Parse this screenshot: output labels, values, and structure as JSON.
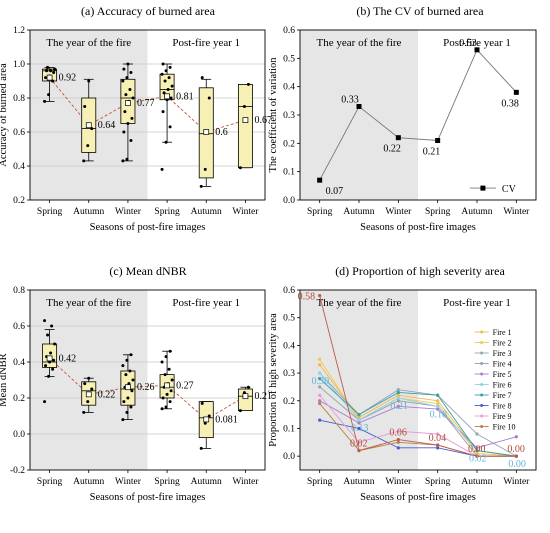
{
  "seasons": [
    "Spring",
    "Autumn",
    "Winter",
    "Spring",
    "Autumn",
    "Winter"
  ],
  "periods": [
    "The year of the fire",
    "Post-fire year 1"
  ],
  "xlabel": "Seasons of post-fire images",
  "chart_data": [
    {
      "panel": "a",
      "type": "box",
      "title": "(a) Accuracy of burned area",
      "ylabel": "Accuracy of burned area",
      "ylim": [
        0.2,
        1.2
      ],
      "yticks": [
        "0.2",
        "0.4",
        "0.6",
        "0.8",
        "1.0",
        "1.2"
      ],
      "mean_labels": [
        "0.92",
        "0.64",
        "0.77",
        "0.81",
        "0.6",
        "0.67"
      ],
      "boxes": [
        {
          "min": 0.78,
          "q1": 0.9,
          "median": 0.96,
          "q3": 0.97,
          "max": 0.98,
          "mean": 0.92,
          "points": [
            0.78,
            0.82,
            0.9,
            0.92,
            0.93,
            0.95,
            0.96,
            0.96,
            0.97,
            0.98
          ]
        },
        {
          "min": 0.43,
          "q1": 0.48,
          "median": 0.62,
          "q3": 0.8,
          "max": 0.91,
          "mean": 0.64,
          "points": [
            0.43,
            0.52,
            0.62,
            0.75,
            0.9
          ]
        },
        {
          "min": 0.43,
          "q1": 0.65,
          "median": 0.8,
          "q3": 0.91,
          "max": 1.0,
          "mean": 0.77,
          "points": [
            0.43,
            0.44,
            0.55,
            0.6,
            0.65,
            0.68,
            0.72,
            0.78,
            0.8,
            0.82,
            0.85,
            0.9,
            0.92,
            0.95,
            0.97,
            1.0
          ]
        },
        {
          "min": 0.54,
          "q1": 0.79,
          "median": 0.85,
          "q3": 0.94,
          "max": 1.0,
          "mean": 0.81,
          "points": [
            0.38,
            0.54,
            0.63,
            0.72,
            0.79,
            0.8,
            0.83,
            0.85,
            0.87,
            0.9,
            0.92,
            0.94,
            0.96,
            0.98,
            1.0
          ]
        },
        {
          "min": 0.28,
          "q1": 0.33,
          "median": 0.59,
          "q3": 0.86,
          "max": 0.91,
          "mean": 0.6,
          "points": [
            0.28,
            0.38,
            0.8,
            0.92
          ]
        },
        {
          "min": 0.39,
          "q1": 0.39,
          "median": 0.75,
          "q3": 0.88,
          "max": 0.88,
          "mean": 0.67,
          "points": [
            0.39,
            0.75,
            0.88
          ]
        }
      ]
    },
    {
      "panel": "b",
      "type": "line",
      "title": "(b) The CV of burned area",
      "ylabel": "The coefficient of variation",
      "ylim": [
        0.0,
        0.6
      ],
      "yticks": [
        "0.0",
        "0.1",
        "0.2",
        "0.3",
        "0.4",
        "0.5",
        "0.6"
      ],
      "legend": "CV",
      "values": [
        0.07,
        0.33,
        0.22,
        0.21,
        0.53,
        0.38
      ],
      "value_labels": [
        "0.07",
        "0.33",
        "0.22",
        "0.21",
        "0.53",
        "0.38"
      ]
    },
    {
      "panel": "c",
      "type": "box",
      "title": "(c) Mean dNBR",
      "ylabel": "Mean dNBR",
      "ylim": [
        -0.2,
        0.8
      ],
      "yticks": [
        "-0.2",
        "0.0",
        "0.2",
        "0.4",
        "0.6",
        "0.8"
      ],
      "mean_labels": [
        "0.42",
        "0.22",
        "0.26",
        "0.27",
        "0.081",
        "0.21"
      ],
      "boxes": [
        {
          "min": 0.32,
          "q1": 0.37,
          "median": 0.4,
          "q3": 0.5,
          "max": 0.58,
          "mean": 0.42,
          "points": [
            0.18,
            0.32,
            0.36,
            0.38,
            0.4,
            0.41,
            0.43,
            0.45,
            0.5,
            0.55,
            0.6,
            0.63
          ]
        },
        {
          "min": 0.12,
          "q1": 0.16,
          "median": 0.24,
          "q3": 0.29,
          "max": 0.31,
          "mean": 0.22,
          "points": [
            0.12,
            0.18,
            0.25,
            0.28,
            0.31
          ]
        },
        {
          "min": 0.08,
          "q1": 0.16,
          "median": 0.25,
          "q3": 0.35,
          "max": 0.44,
          "mean": 0.26,
          "points": [
            0.08,
            0.12,
            0.15,
            0.18,
            0.2,
            0.24,
            0.26,
            0.28,
            0.3,
            0.33,
            0.35,
            0.38,
            0.41,
            0.44
          ]
        },
        {
          "min": 0.14,
          "q1": 0.2,
          "median": 0.26,
          "q3": 0.33,
          "max": 0.46,
          "mean": 0.27,
          "points": [
            0.14,
            0.15,
            0.18,
            0.2,
            0.22,
            0.24,
            0.26,
            0.28,
            0.3,
            0.33,
            0.36,
            0.4,
            0.43,
            0.46
          ]
        },
        {
          "min": -0.08,
          "q1": -0.02,
          "median": 0.09,
          "q3": 0.18,
          "max": 0.18,
          "mean": 0.081,
          "points": [
            -0.08,
            0.06,
            0.1,
            0.17
          ]
        },
        {
          "min": 0.13,
          "q1": 0.13,
          "median": 0.21,
          "q3": 0.25,
          "max": 0.26,
          "mean": 0.21,
          "points": [
            0.13,
            0.23,
            0.26
          ]
        }
      ]
    },
    {
      "panel": "d",
      "type": "line",
      "title": "(d) Proportion of high severity area",
      "ylabel": "Proportion of high severity area",
      "ylim": [
        -0.05,
        0.6
      ],
      "yticks": [
        "0.0",
        "0.1",
        "0.2",
        "0.3",
        "0.4",
        "0.5",
        "0.6"
      ],
      "series": [
        {
          "name": "Fire 1",
          "color": "#f2b84b",
          "values": [
            0.33,
            0.14,
            0.22,
            0.2,
            0.02,
            0.0
          ]
        },
        {
          "name": "Fire 2",
          "color": "#f5c84a",
          "values": [
            0.35,
            0.13,
            0.21,
            0.19,
            0.01,
            0.0
          ]
        },
        {
          "name": "Fire 3",
          "color": "#8da7b8",
          "values": [
            0.3,
            0.15,
            0.24,
            0.22,
            0.08,
            0.0
          ]
        },
        {
          "name": "Fire 4",
          "color": "#9aa0a6",
          "values": [
            0.25,
            0.13,
            0.2,
            0.18,
            0.0,
            0.0
          ]
        },
        {
          "name": "Fire 5",
          "color": "#a87bd1",
          "values": [
            0.2,
            0.12,
            0.18,
            0.17,
            0.03,
            0.07
          ]
        },
        {
          "name": "Fire 6",
          "color": "#8ad4ec",
          "values": [
            0.3,
            0.13,
            0.21,
            0.18,
            0.02,
            0.0
          ]
        },
        {
          "name": "Fire 7",
          "color": "#3a9fa3",
          "values": [
            0.28,
            0.15,
            0.23,
            0.22,
            0.02,
            0.0
          ]
        },
        {
          "name": "Fire 8",
          "color": "#4a5bd1",
          "values": [
            0.13,
            0.1,
            0.03,
            0.03,
            0.0,
            0.0
          ]
        },
        {
          "name": "Fire 9",
          "color": "#e79ad6",
          "values": [
            0.22,
            0.05,
            0.09,
            0.08,
            0.0,
            0.0
          ]
        },
        {
          "name": "Fire 10",
          "color": "#b8823c",
          "values": [
            0.19,
            0.02,
            0.05,
            0.04,
            0.0,
            0.0
          ]
        },
        {
          "name": "",
          "color": "#c0584a",
          "values": [
            0.58,
            0.02,
            0.06,
            0.04,
            0.0,
            0.0
          ]
        }
      ],
      "mean_values": [
        0.3,
        0.13,
        0.21,
        0.18,
        0.02,
        0.0
      ],
      "mean_labels": [
        "0.30",
        "0.13",
        "0.21",
        "0.18",
        "0.02",
        "0.00"
      ],
      "highlight_labels": [
        "0.58",
        "0.02",
        "0.06",
        "0.04",
        "0.00",
        "0.00"
      ]
    }
  ]
}
